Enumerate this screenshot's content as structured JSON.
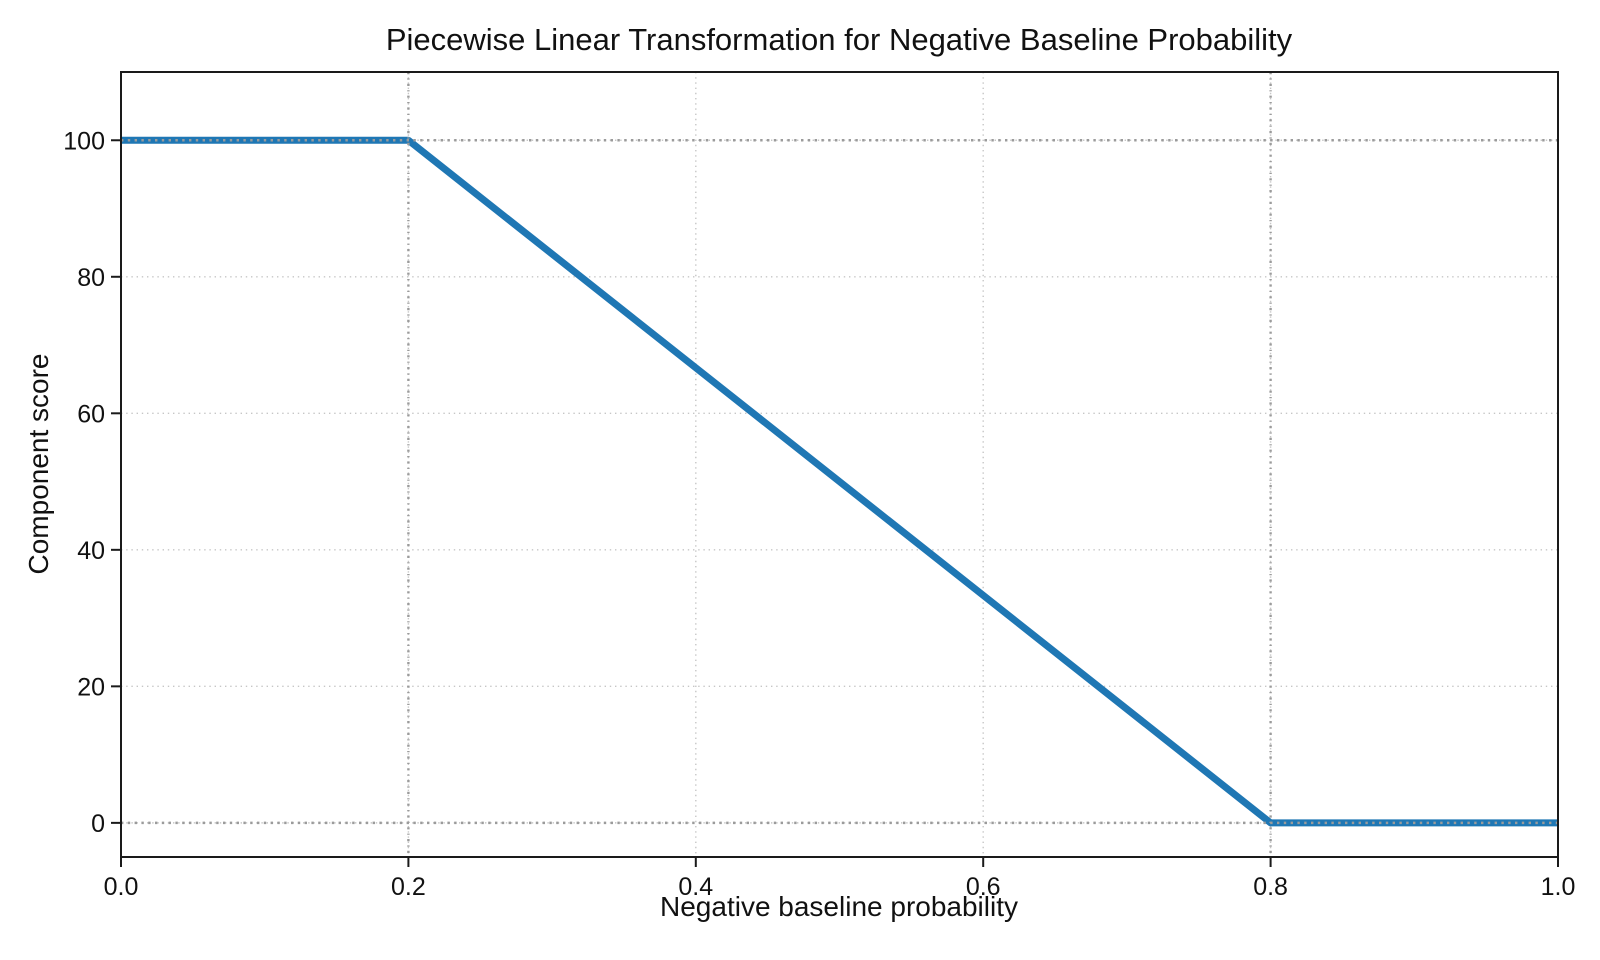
{
  "figure": {
    "background_color": "#ffffff",
    "text_color": "#111111",
    "spine_color": "#1a1a1a"
  },
  "chart_data": {
    "type": "line",
    "title": "Piecewise Linear Transformation for Negative Baseline Probability",
    "xlabel": "Negative baseline probability",
    "ylabel": "Component score",
    "xlim": [
      0.0,
      1.0
    ],
    "ylim": [
      -5,
      110
    ],
    "x_ticks": [
      0.0,
      0.2,
      0.4,
      0.6,
      0.8,
      1.0
    ],
    "x_tick_labels": [
      "0.0",
      "0.2",
      "0.4",
      "0.6",
      "0.8",
      "1.0"
    ],
    "y_ticks": [
      0,
      20,
      40,
      60,
      80,
      100
    ],
    "y_tick_labels": [
      "0",
      "20",
      "40",
      "60",
      "80",
      "100"
    ],
    "grid": true,
    "grid_style": "dotted",
    "grid_color": "#c6c6c6",
    "legend_position": "none",
    "series": [
      {
        "name": "piecewise-linear-transform",
        "color": "#1f77b4",
        "line_width": 7,
        "points": [
          [
            0.0,
            100
          ],
          [
            0.2,
            100
          ],
          [
            0.8,
            0
          ],
          [
            1.0,
            0
          ]
        ]
      }
    ],
    "reference_lines": {
      "vertical_x": [
        0.2,
        0.8
      ],
      "horizontal_y": [
        100,
        0
      ],
      "color": "#9b9b9b",
      "style": "dotted"
    }
  }
}
